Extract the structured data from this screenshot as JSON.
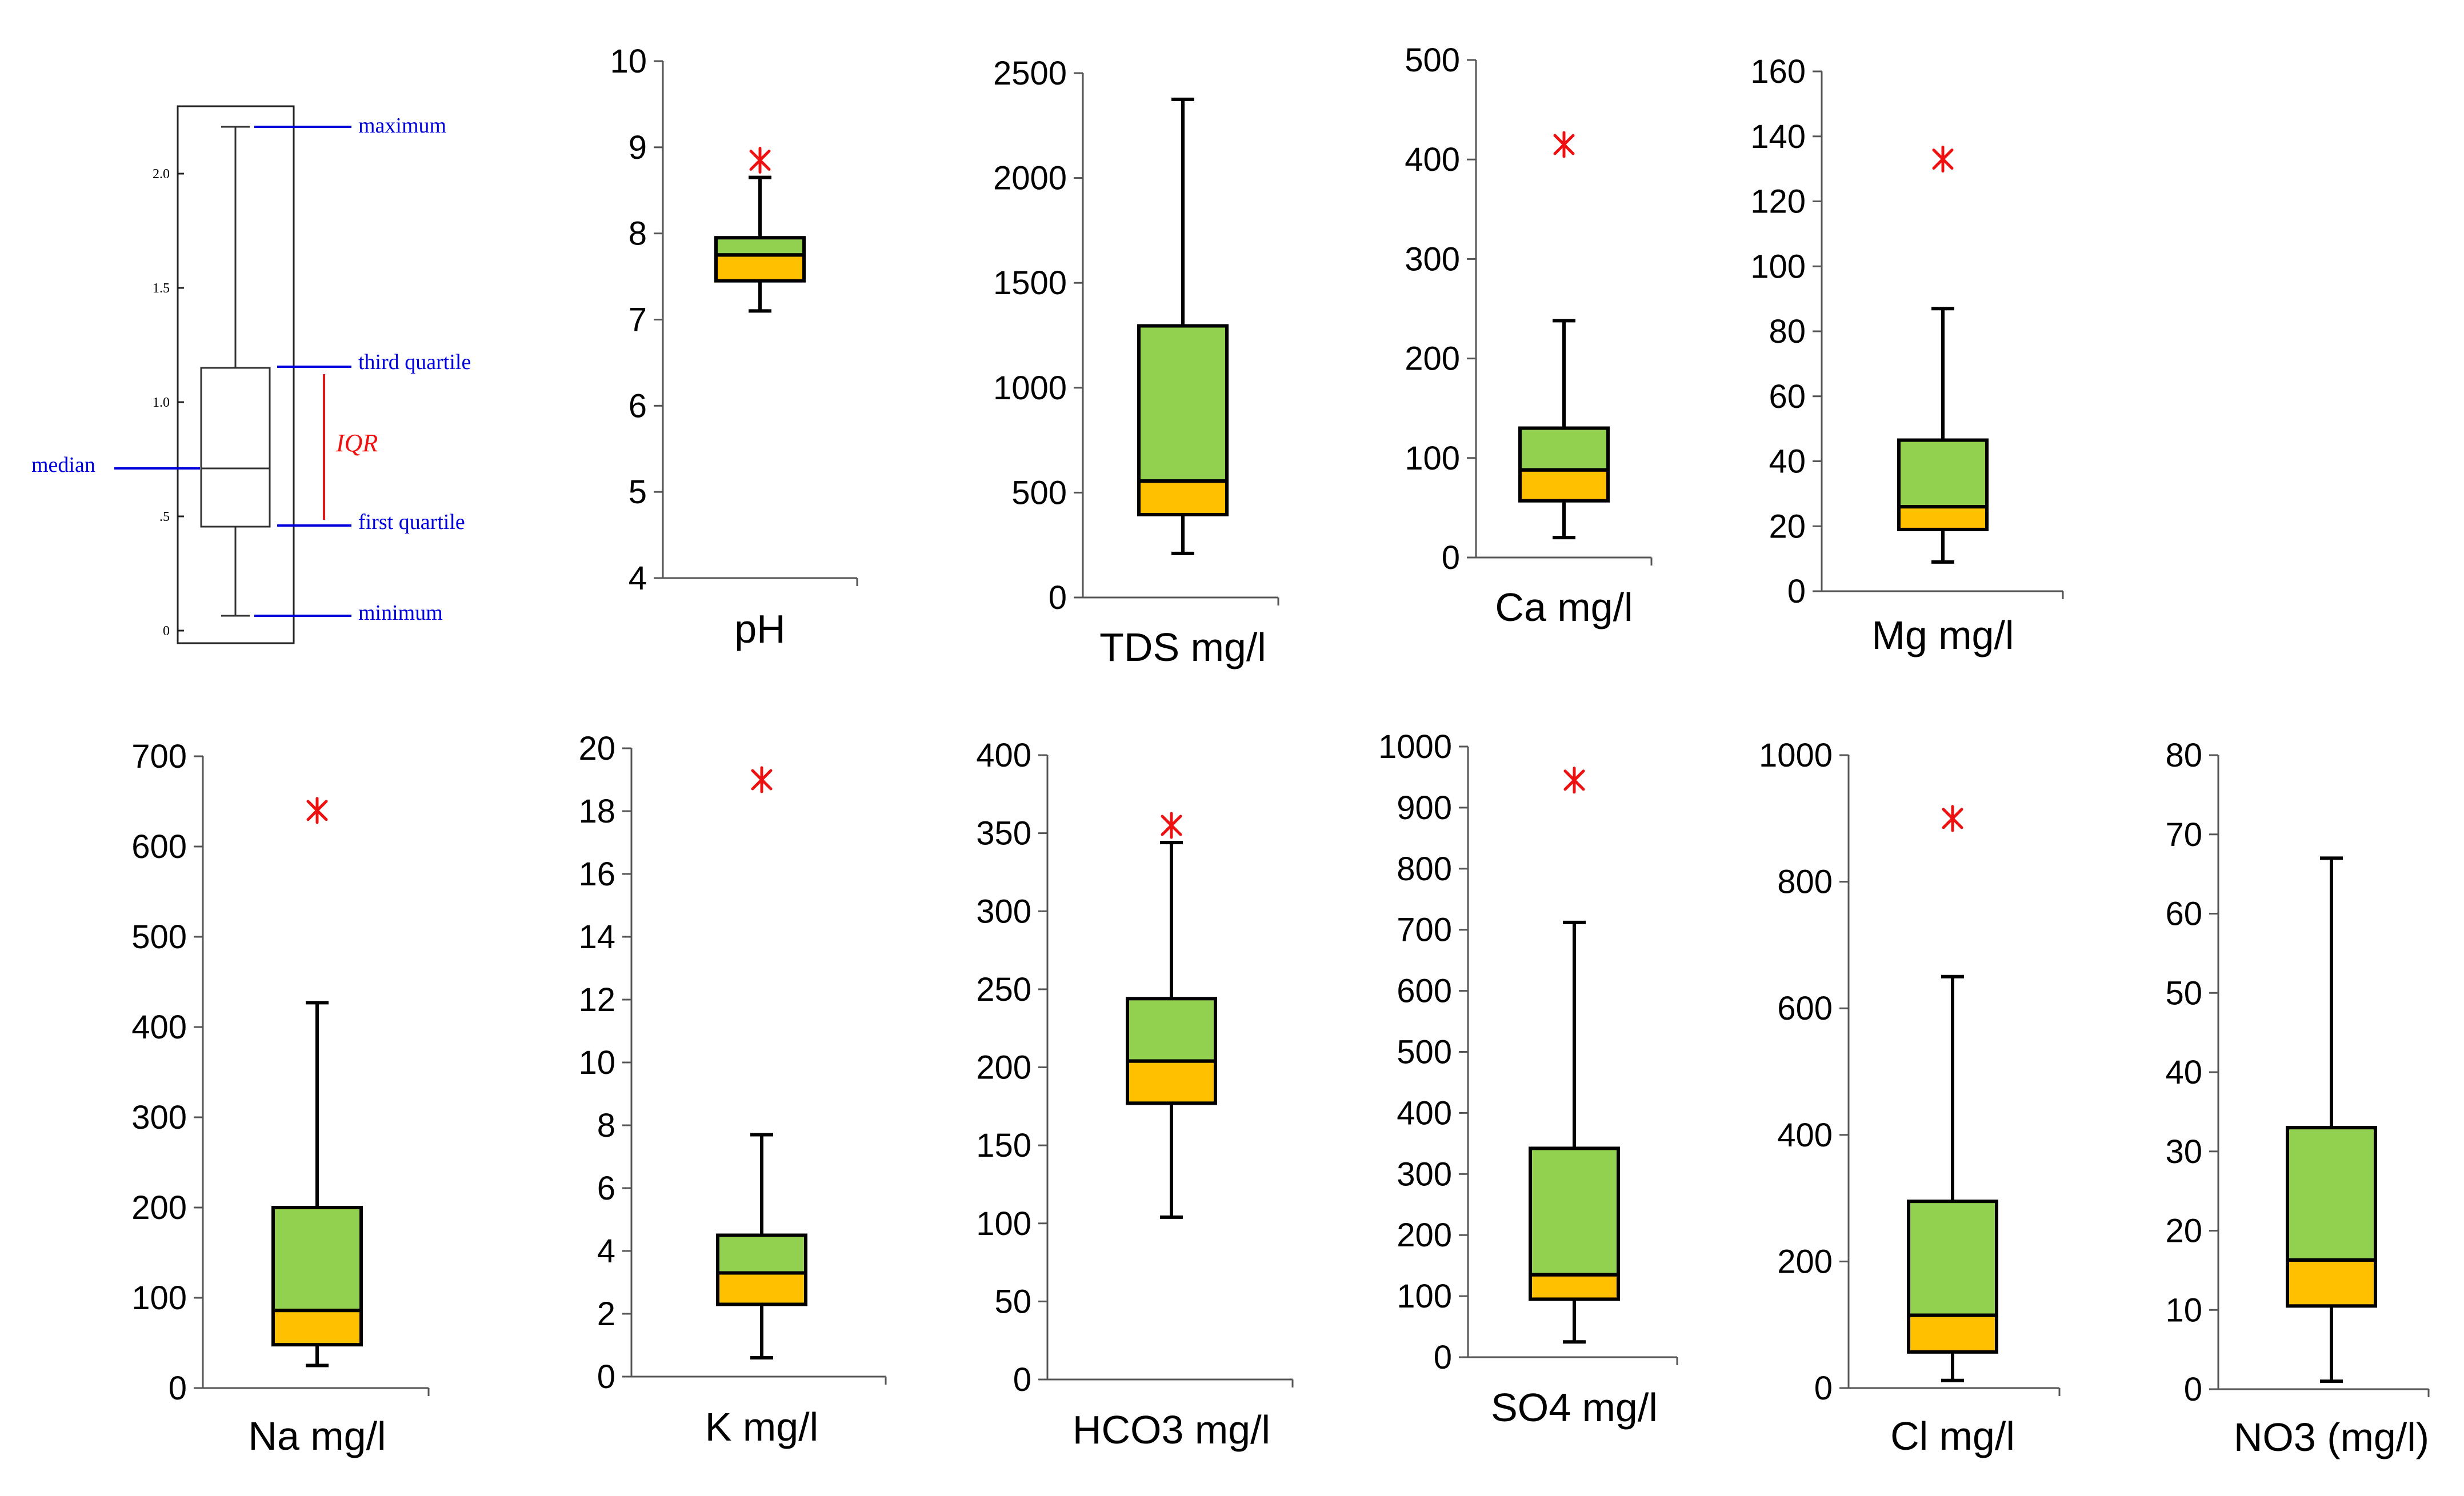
{
  "colors": {
    "upper_box": "#92d050",
    "lower_box": "#ffc000",
    "outlier": "#ee1111",
    "legend_label": "#0000dd",
    "iqr": "#ee1111"
  },
  "legend": {
    "labels": {
      "maximum": "maximum",
      "third_quartile": "third quartile",
      "median": "median",
      "first_quartile": "first quartile",
      "minimum": "minimum",
      "iqr": "IQR"
    },
    "ticks": [
      "0",
      ".5",
      "1.0",
      "1.5",
      "2.0"
    ]
  },
  "chart_data": [
    {
      "type": "box",
      "xlabel": "pH",
      "ylim": [
        4,
        10
      ],
      "yticks": [
        4,
        5,
        6,
        7,
        8,
        9,
        10
      ],
      "whisker_low": 7.1,
      "q1": 7.45,
      "median": 7.75,
      "q3": 7.95,
      "whisker_high": 8.65,
      "outlier": 8.85
    },
    {
      "type": "box",
      "xlabel": "TDS mg/l",
      "ylim": [
        0,
        2500
      ],
      "yticks": [
        0,
        500,
        1000,
        1500,
        2000,
        2500
      ],
      "whisker_low": 210,
      "q1": 395,
      "median": 555,
      "q3": 1295,
      "whisker_high": 2375
    },
    {
      "type": "box",
      "xlabel": "Ca mg/l",
      "ylim": [
        0,
        500
      ],
      "yticks": [
        0,
        100,
        200,
        300,
        400,
        500
      ],
      "whisker_low": 20,
      "q1": 57,
      "median": 88,
      "q3": 130,
      "whisker_high": 238,
      "outlier": 415
    },
    {
      "type": "box",
      "xlabel": "Mg mg/l",
      "ylim": [
        0,
        160
      ],
      "yticks": [
        0,
        20,
        40,
        60,
        80,
        100,
        120,
        140,
        160
      ],
      "whisker_low": 9,
      "q1": 19,
      "median": 26,
      "q3": 46.5,
      "whisker_high": 87,
      "outlier": 133
    },
    {
      "type": "box",
      "xlabel": "Na mg/l",
      "ylim": [
        0,
        700
      ],
      "yticks": [
        0,
        100,
        200,
        300,
        400,
        500,
        600,
        700
      ],
      "whisker_low": 25,
      "q1": 48,
      "median": 86,
      "q3": 200,
      "whisker_high": 427,
      "outlier": 640
    },
    {
      "type": "box",
      "xlabel": "K mg/l",
      "ylim": [
        0,
        20
      ],
      "yticks": [
        0,
        2,
        4,
        6,
        8,
        10,
        12,
        14,
        16,
        18,
        20
      ],
      "whisker_low": 0.6,
      "q1": 2.3,
      "median": 3.3,
      "q3": 4.5,
      "whisker_high": 7.7,
      "outlier": 19.0
    },
    {
      "type": "box",
      "xlabel": "HCO3 mg/l",
      "ylim": [
        0,
        400
      ],
      "yticks": [
        0,
        50,
        100,
        150,
        200,
        250,
        300,
        350,
        400
      ],
      "whisker_low": 104,
      "q1": 177,
      "median": 204,
      "q3": 244,
      "whisker_high": 344,
      "outlier": 355
    },
    {
      "type": "box",
      "xlabel": "SO4 mg/l",
      "ylim": [
        0,
        1000
      ],
      "yticks": [
        0,
        100,
        200,
        300,
        400,
        500,
        600,
        700,
        800,
        900,
        1000
      ],
      "whisker_low": 25,
      "q1": 95,
      "median": 135,
      "q3": 342,
      "whisker_high": 712,
      "outlier": 945
    },
    {
      "type": "box",
      "xlabel": "Cl mg/l",
      "ylim": [
        0,
        1000
      ],
      "yticks": [
        0,
        200,
        400,
        600,
        800,
        1000
      ],
      "whisker_low": 12,
      "q1": 57,
      "median": 115,
      "q3": 295,
      "whisker_high": 650,
      "outlier": 900
    },
    {
      "type": "box",
      "xlabel": "NO3 (mg/l)",
      "ylim": [
        0,
        80
      ],
      "yticks": [
        0,
        10,
        20,
        30,
        40,
        50,
        60,
        70,
        80
      ],
      "whisker_low": 1,
      "q1": 10.5,
      "median": 16.3,
      "q3": 33,
      "whisker_high": 67
    }
  ]
}
